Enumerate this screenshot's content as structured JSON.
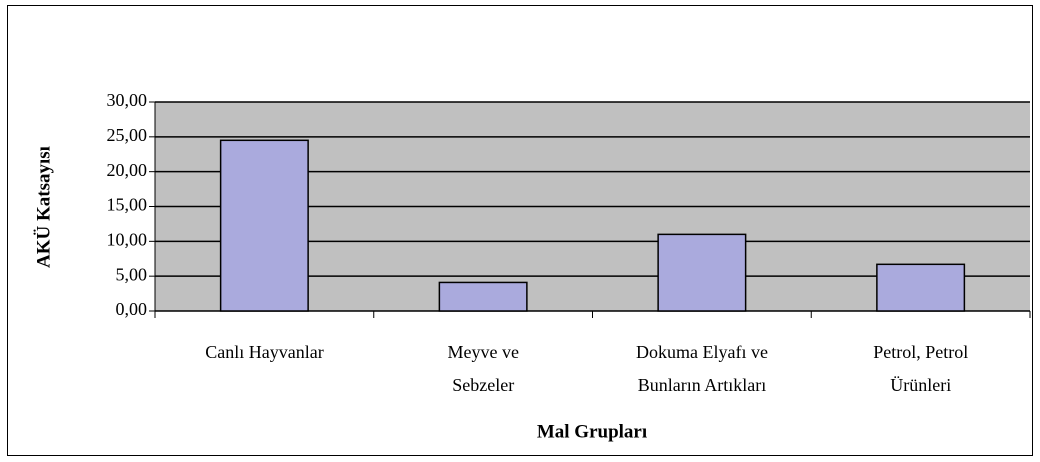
{
  "chart_data": {
    "type": "bar",
    "categories": [
      "Canlı Hayvanlar",
      "Meyve ve\nSebzeler",
      "Dokuma Elyafı ve\nBunların Artıkları",
      "Petrol, Petrol\nÜrünleri"
    ],
    "values": [
      24.5,
      4.1,
      11.0,
      6.7
    ],
    "color": "#aaaadd",
    "xlabel": "Mal Grupları",
    "ylabel": "AKÜ Katsayısı",
    "ylim": [
      0,
      30
    ],
    "yticks": [
      {
        "value": 0,
        "label": "0,00"
      },
      {
        "value": 5,
        "label": "5,00"
      },
      {
        "value": 10,
        "label": "10,00"
      },
      {
        "value": 15,
        "label": "15,00"
      },
      {
        "value": 20,
        "label": "20,00"
      },
      {
        "value": 25,
        "label": "25,00"
      },
      {
        "value": 30,
        "label": "30,00"
      }
    ],
    "grid": true
  }
}
